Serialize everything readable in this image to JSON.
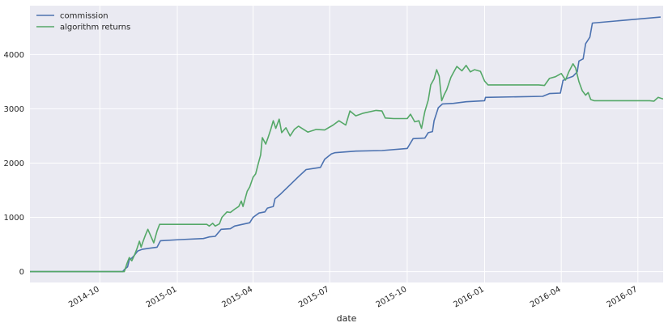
{
  "chart_data": {
    "type": "line",
    "xlabel": "date",
    "ylabel": "",
    "x_type": "date",
    "xlim": [
      "2014-07-10",
      "2016-07-31"
    ],
    "ylim": [
      -200,
      4900
    ],
    "y_ticks": [
      0,
      1000,
      2000,
      3000,
      4000
    ],
    "x_ticks": [
      {
        "date": "2014-10-01",
        "label": "2014-10"
      },
      {
        "date": "2015-01-01",
        "label": "2015-01"
      },
      {
        "date": "2015-04-01",
        "label": "2015-04"
      },
      {
        "date": "2015-07-01",
        "label": "2015-07"
      },
      {
        "date": "2015-10-01",
        "label": "2015-10"
      },
      {
        "date": "2016-01-01",
        "label": "2016-01"
      },
      {
        "date": "2016-04-01",
        "label": "2016-04"
      },
      {
        "date": "2016-07-01",
        "label": "2016-07"
      }
    ],
    "grid": true,
    "legend_position": "top-left",
    "colors": {
      "background": "#EAEAF2",
      "grid": "#FFFFFF",
      "commission": "#4C72B0",
      "algorithm_returns": "#55A868"
    },
    "series": [
      {
        "name": "commission",
        "color": "#4C72B0",
        "points": [
          [
            "2014-07-10",
            0
          ],
          [
            "2014-10-28",
            0
          ],
          [
            "2014-10-31",
            50
          ],
          [
            "2014-11-03",
            90
          ],
          [
            "2014-11-05",
            220
          ],
          [
            "2014-11-08",
            250
          ],
          [
            "2014-11-11",
            300
          ],
          [
            "2014-11-15",
            380
          ],
          [
            "2014-11-20",
            410
          ],
          [
            "2014-11-28",
            430
          ],
          [
            "2014-12-08",
            450
          ],
          [
            "2014-12-12",
            570
          ],
          [
            "2015-01-05",
            590
          ],
          [
            "2015-02-01",
            610
          ],
          [
            "2015-02-08",
            640
          ],
          [
            "2015-02-15",
            650
          ],
          [
            "2015-02-22",
            780
          ],
          [
            "2015-03-05",
            790
          ],
          [
            "2015-03-10",
            840
          ],
          [
            "2015-03-28",
            900
          ],
          [
            "2015-04-01",
            1000
          ],
          [
            "2015-04-08",
            1080
          ],
          [
            "2015-04-15",
            1100
          ],
          [
            "2015-04-18",
            1170
          ],
          [
            "2015-04-25",
            1200
          ],
          [
            "2015-04-27",
            1340
          ],
          [
            "2015-05-03",
            1420
          ],
          [
            "2015-05-07",
            1480
          ],
          [
            "2015-05-15",
            1600
          ],
          [
            "2015-05-25",
            1750
          ],
          [
            "2015-06-03",
            1880
          ],
          [
            "2015-06-20",
            1920
          ],
          [
            "2015-06-25",
            2070
          ],
          [
            "2015-07-03",
            2170
          ],
          [
            "2015-07-07",
            2190
          ],
          [
            "2015-08-01",
            2220
          ],
          [
            "2015-09-01",
            2230
          ],
          [
            "2015-10-01",
            2270
          ],
          [
            "2015-10-03",
            2320
          ],
          [
            "2015-10-08",
            2450
          ],
          [
            "2015-10-22",
            2460
          ],
          [
            "2015-10-26",
            2560
          ],
          [
            "2015-10-31",
            2580
          ],
          [
            "2015-11-02",
            2780
          ],
          [
            "2015-11-07",
            3020
          ],
          [
            "2015-11-12",
            3090
          ],
          [
            "2015-11-25",
            3100
          ],
          [
            "2015-12-10",
            3130
          ],
          [
            "2016-01-01",
            3150
          ],
          [
            "2016-01-02",
            3210
          ],
          [
            "2016-03-10",
            3230
          ],
          [
            "2016-03-18",
            3280
          ],
          [
            "2016-03-31",
            3290
          ],
          [
            "2016-04-03",
            3520
          ],
          [
            "2016-04-08",
            3560
          ],
          [
            "2016-04-15",
            3600
          ],
          [
            "2016-04-20",
            3680
          ],
          [
            "2016-04-22",
            3880
          ],
          [
            "2016-04-27",
            3920
          ],
          [
            "2016-04-30",
            4200
          ],
          [
            "2016-05-05",
            4320
          ],
          [
            "2016-05-08",
            4580
          ],
          [
            "2016-07-28",
            4690
          ]
        ]
      },
      {
        "name": "algorithm returns",
        "color": "#55A868",
        "points": [
          [
            "2014-07-10",
            0
          ],
          [
            "2014-10-30",
            0
          ],
          [
            "2014-11-02",
            140
          ],
          [
            "2014-11-05",
            260
          ],
          [
            "2014-11-08",
            200
          ],
          [
            "2014-11-11",
            300
          ],
          [
            "2014-11-14",
            420
          ],
          [
            "2014-11-17",
            560
          ],
          [
            "2014-11-19",
            450
          ],
          [
            "2014-11-21",
            540
          ],
          [
            "2014-11-24",
            670
          ],
          [
            "2014-11-27",
            780
          ],
          [
            "2014-12-01",
            640
          ],
          [
            "2014-12-04",
            530
          ],
          [
            "2014-12-08",
            750
          ],
          [
            "2014-12-11",
            870
          ],
          [
            "2015-01-10",
            870
          ],
          [
            "2015-02-05",
            870
          ],
          [
            "2015-02-08",
            840
          ],
          [
            "2015-02-12",
            890
          ],
          [
            "2015-02-15",
            840
          ],
          [
            "2015-02-20",
            880
          ],
          [
            "2015-02-23",
            1000
          ],
          [
            "2015-03-01",
            1100
          ],
          [
            "2015-03-05",
            1090
          ],
          [
            "2015-03-10",
            1150
          ],
          [
            "2015-03-15",
            1200
          ],
          [
            "2015-03-18",
            1300
          ],
          [
            "2015-03-20",
            1200
          ],
          [
            "2015-03-25",
            1480
          ],
          [
            "2015-03-28",
            1560
          ],
          [
            "2015-04-01",
            1740
          ],
          [
            "2015-04-04",
            1800
          ],
          [
            "2015-04-07",
            1980
          ],
          [
            "2015-04-10",
            2150
          ],
          [
            "2015-04-12",
            2470
          ],
          [
            "2015-04-16",
            2350
          ],
          [
            "2015-04-19",
            2480
          ],
          [
            "2015-04-22",
            2620
          ],
          [
            "2015-04-25",
            2780
          ],
          [
            "2015-04-28",
            2640
          ],
          [
            "2015-05-02",
            2810
          ],
          [
            "2015-05-05",
            2560
          ],
          [
            "2015-05-10",
            2650
          ],
          [
            "2015-05-15",
            2500
          ],
          [
            "2015-05-20",
            2620
          ],
          [
            "2015-05-25",
            2680
          ],
          [
            "2015-06-05",
            2570
          ],
          [
            "2015-06-15",
            2620
          ],
          [
            "2015-06-25",
            2610
          ],
          [
            "2015-07-05",
            2700
          ],
          [
            "2015-07-12",
            2780
          ],
          [
            "2015-07-20",
            2700
          ],
          [
            "2015-07-25",
            2960
          ],
          [
            "2015-08-01",
            2870
          ],
          [
            "2015-08-10",
            2920
          ],
          [
            "2015-08-25",
            2970
          ],
          [
            "2015-09-01",
            2960
          ],
          [
            "2015-09-05",
            2830
          ],
          [
            "2015-09-15",
            2820
          ],
          [
            "2015-10-01",
            2820
          ],
          [
            "2015-10-05",
            2900
          ],
          [
            "2015-10-10",
            2760
          ],
          [
            "2015-10-15",
            2780
          ],
          [
            "2015-10-18",
            2640
          ],
          [
            "2015-10-22",
            2950
          ],
          [
            "2015-10-26",
            3160
          ],
          [
            "2015-10-29",
            3440
          ],
          [
            "2015-11-02",
            3550
          ],
          [
            "2015-11-05",
            3720
          ],
          [
            "2015-11-08",
            3600
          ],
          [
            "2015-11-11",
            3150
          ],
          [
            "2015-11-14",
            3260
          ],
          [
            "2015-11-17",
            3350
          ],
          [
            "2015-11-22",
            3580
          ],
          [
            "2015-11-25",
            3670
          ],
          [
            "2015-11-29",
            3780
          ],
          [
            "2015-12-05",
            3700
          ],
          [
            "2015-12-10",
            3800
          ],
          [
            "2015-12-15",
            3680
          ],
          [
            "2015-12-20",
            3720
          ],
          [
            "2015-12-27",
            3690
          ],
          [
            "2016-01-01",
            3510
          ],
          [
            "2016-01-05",
            3440
          ],
          [
            "2016-03-05",
            3440
          ],
          [
            "2016-03-12",
            3430
          ],
          [
            "2016-03-18",
            3560
          ],
          [
            "2016-03-25",
            3590
          ],
          [
            "2016-04-01",
            3650
          ],
          [
            "2016-04-06",
            3530
          ],
          [
            "2016-04-10",
            3680
          ],
          [
            "2016-04-15",
            3830
          ],
          [
            "2016-04-18",
            3750
          ],
          [
            "2016-04-22",
            3500
          ],
          [
            "2016-04-26",
            3330
          ],
          [
            "2016-04-30",
            3250
          ],
          [
            "2016-05-03",
            3300
          ],
          [
            "2016-05-06",
            3170
          ],
          [
            "2016-05-10",
            3150
          ],
          [
            "2016-07-15",
            3150
          ],
          [
            "2016-07-20",
            3140
          ],
          [
            "2016-07-25",
            3210
          ],
          [
            "2016-07-31",
            3180
          ]
        ]
      }
    ]
  }
}
